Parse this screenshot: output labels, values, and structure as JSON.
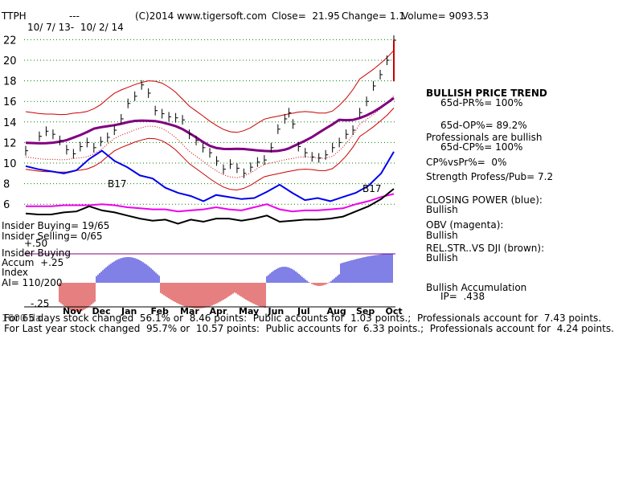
{
  "header": {
    "ticker": "TTPH",
    "dashes": "---",
    "copyright": "(C)2014 www.tigersoft.com",
    "close": "Close=  21.95",
    "change": "Change= 1.1",
    "volume": "Volume= 9093.53",
    "date_range": "10/ 7/ 13-  10/ 2/ 14"
  },
  "right_panel": {
    "trend_title": "BULLISH PRICE TREND",
    "pr": "65d-PR%= 100%",
    "op": "65d-OP%= 89.2%",
    "prof_bullish": "Professionals are bullish",
    "cp": "65d-CP%= 100%",
    "cp_vs_pr": "CP%vsPr%=  0%",
    "strength": "Strength Profess/Pub= 7.2",
    "closing_power_label": "CLOSING POWER (blue):",
    "closing_power_value": "Bullish",
    "obv_label": "OBV (magenta):",
    "obv_value": "Bullish",
    "relstr_label": "REL.STR..VS DJI (brown):",
    "relstr_value": "Bullish",
    "accum_label": "Bullish Accumulation",
    "accum_ip": "IP=  .438"
  },
  "left_labels": {
    "insider_buying": "Insider Buying= 19/65",
    "insider_selling": "Insider Selling= 0/65",
    "plus50": "+.50",
    "insider_buying2": "Insider Buying",
    "accum": "Accum  +.25",
    "index": "Index",
    "ai": "AI= 110/200",
    "minus25": "-.25"
  },
  "annotations": {
    "b17_left": "B17",
    "b17_right": "B17"
  },
  "footer": {
    "line1_overlap": "1600 da",
    "line1": "For 65 days stock changed  56.1% or  8.46 points:  Public accounts for  1.03 points.;  Professionals account for  7.43 points.",
    "line2": "For Last year stock changed  95.7% or  10.57 points:  Public accounts for  6.33 points.;  Professionals account for  4.24 points."
  },
  "colors": {
    "price": "#000000",
    "band": "#cc0000",
    "ma": "#800080",
    "closing_power": "#0000ee",
    "obv": "#ee00ee",
    "relstr": "#000000",
    "accum_pos": "#0000cc",
    "accum_neg": "#cc0000",
    "grid": "#008000"
  },
  "chart_data": {
    "type": "line",
    "title": "",
    "xlabel": "",
    "ylabel": "",
    "ylim": [
      5,
      22.5
    ],
    "grid": true,
    "x_ticks": [
      "Nov",
      "Dec",
      "Jan",
      "Feb",
      "Mar",
      "Apr",
      "May",
      "Jun",
      "Jul",
      "Aug",
      "Sep",
      "Oct"
    ],
    "y_ticks": [
      6,
      8,
      10,
      12,
      14,
      16,
      18,
      20,
      22
    ],
    "accum_ticks": [
      "+.50",
      "+.25",
      "-.25"
    ],
    "price_points": [
      [
        0,
        11.2
      ],
      [
        1,
        12.6
      ],
      [
        1.5,
        13.1
      ],
      [
        2,
        12.8
      ],
      [
        2.5,
        12.2
      ],
      [
        3,
        11.3
      ],
      [
        3.5,
        10.9
      ],
      [
        4,
        11.6
      ],
      [
        4.5,
        12.0
      ],
      [
        5,
        11.5
      ],
      [
        5.5,
        12.1
      ],
      [
        6,
        12.5
      ],
      [
        6.5,
        13.2
      ],
      [
        7,
        14.3
      ],
      [
        7.5,
        15.8
      ],
      [
        8,
        16.5
      ],
      [
        8.5,
        17.6
      ],
      [
        9,
        16.8
      ],
      [
        9.5,
        15.1
      ],
      [
        10,
        14.8
      ],
      [
        10.5,
        14.5
      ],
      [
        11,
        14.4
      ],
      [
        11.5,
        14.2
      ],
      [
        12,
        12.8
      ],
      [
        12.5,
        12.2
      ],
      [
        13,
        11.5
      ],
      [
        13.5,
        11.0
      ],
      [
        14,
        10.2
      ],
      [
        14.5,
        9.4
      ],
      [
        15,
        9.9
      ],
      [
        15.5,
        9.5
      ],
      [
        16,
        9.0
      ],
      [
        16.5,
        9.6
      ],
      [
        17,
        10.1
      ],
      [
        17.5,
        10.3
      ],
      [
        18,
        11.5
      ],
      [
        18.5,
        13.3
      ],
      [
        19,
        14.3
      ],
      [
        19.3,
        14.9
      ],
      [
        19.6,
        13.8
      ],
      [
        20,
        11.6
      ],
      [
        20.5,
        11.0
      ],
      [
        21,
        10.6
      ],
      [
        21.5,
        10.5
      ],
      [
        22,
        10.8
      ],
      [
        22.5,
        11.5
      ],
      [
        23,
        12.0
      ],
      [
        23.5,
        12.8
      ],
      [
        24,
        13.2
      ],
      [
        24.5,
        14.9
      ],
      [
        25,
        16.0
      ],
      [
        25.5,
        17.5
      ],
      [
        26,
        18.6
      ],
      [
        26.5,
        20.0
      ],
      [
        27,
        21.95
      ]
    ],
    "series": [
      {
        "name": "CLOSING POWER (blue)",
        "values": [
          9.7,
          9.4,
          9.2,
          9.0,
          9.3,
          10.4,
          11.2,
          10.2,
          9.6,
          8.8,
          8.5,
          7.6,
          7.1,
          6.8,
          6.3,
          6.9,
          6.7,
          6.5,
          6.6,
          7.2,
          7.9,
          7.1,
          6.4,
          6.6,
          6.3,
          6.7,
          7.1,
          7.8,
          9.0,
          11.1
        ]
      },
      {
        "name": "OBV (magenta)",
        "values": [
          5.8,
          5.8,
          5.8,
          5.9,
          5.9,
          5.9,
          6.0,
          5.9,
          5.7,
          5.6,
          5.5,
          5.5,
          5.3,
          5.4,
          5.5,
          5.7,
          5.5,
          5.4,
          5.7,
          6.0,
          5.5,
          5.3,
          5.4,
          5.4,
          5.5,
          5.6,
          6.0,
          6.3,
          6.7,
          7.0
        ]
      },
      {
        "name": "REL.STR..VS DJI (brown)",
        "values": [
          5.1,
          5.0,
          5.0,
          5.2,
          5.3,
          5.8,
          5.4,
          5.2,
          4.9,
          4.6,
          4.4,
          4.5,
          4.1,
          4.5,
          4.3,
          4.6,
          4.6,
          4.4,
          4.6,
          4.9,
          4.3,
          4.4,
          4.5,
          4.5,
          4.6,
          4.8,
          5.3,
          5.8,
          6.5,
          7.5
        ]
      }
    ]
  }
}
